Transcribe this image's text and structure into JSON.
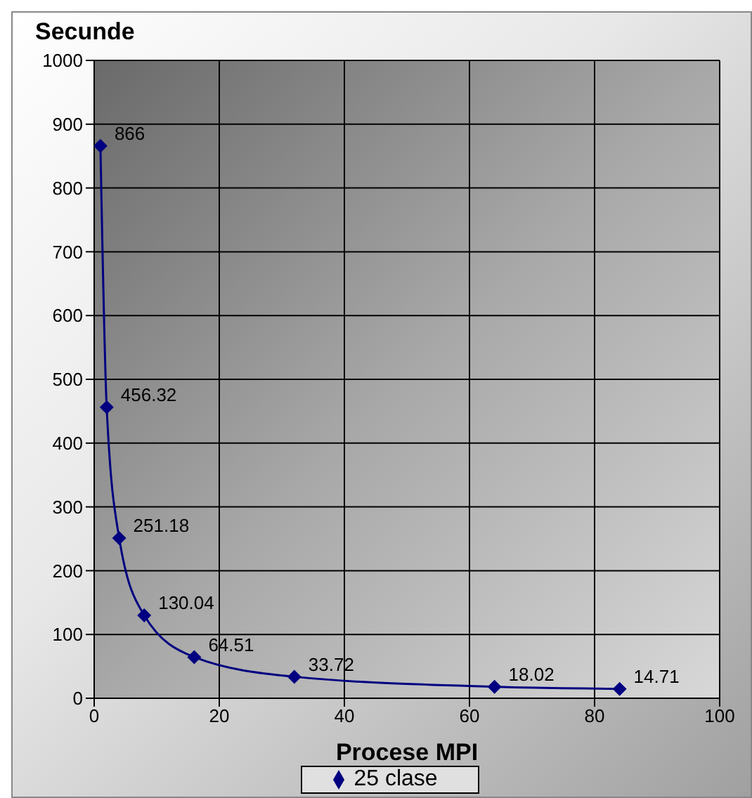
{
  "chart_data": {
    "type": "line",
    "xlabel": "Procese MPI",
    "ylabel": "Secunde",
    "x": [
      1,
      2,
      4,
      8,
      16,
      32,
      64,
      84
    ],
    "series": [
      {
        "name": "25 clase",
        "color": "#000080",
        "values": [
          866,
          456.32,
          251.18,
          130.04,
          64.51,
          33.72,
          18.02,
          14.71
        ]
      }
    ],
    "xlim": [
      0,
      100
    ],
    "xticks": [
      0,
      20,
      40,
      60,
      80,
      100
    ],
    "ylim": [
      0,
      1000
    ],
    "yticks": [
      0,
      100,
      200,
      300,
      400,
      500,
      600,
      700,
      800,
      900,
      1000
    ],
    "grid": true,
    "legend": "bottom",
    "marker": "diamond",
    "line_style": "solid",
    "data_labels": true
  }
}
